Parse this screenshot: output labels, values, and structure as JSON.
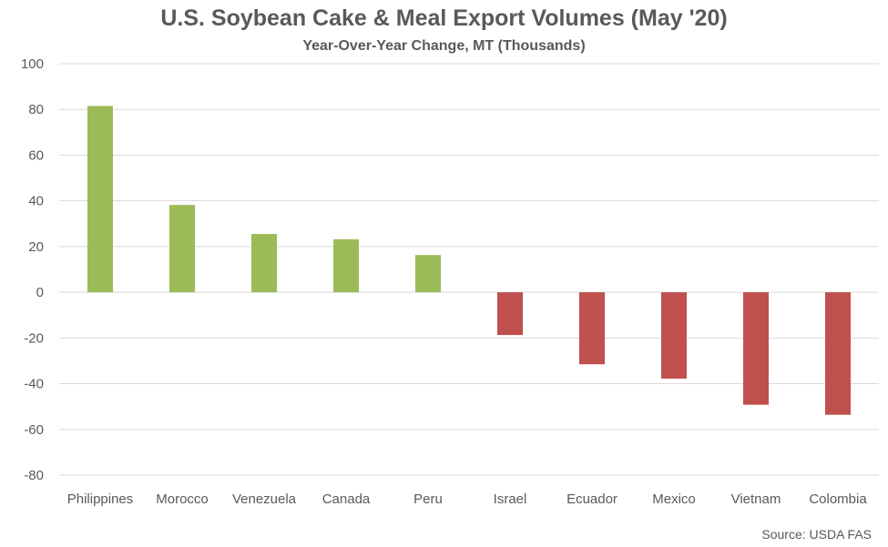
{
  "chart_data": {
    "type": "bar",
    "title": "U.S. Soybean Cake & Meal Export Volumes (May '20)",
    "subtitle": "Year-Over-Year Change, MT (Thousands)",
    "xlabel": "",
    "ylabel": "",
    "categories": [
      "Philippines",
      "Morocco",
      "Venezuela",
      "Canada",
      "Peru",
      "Israel",
      "Ecuador",
      "Mexico",
      "Vietnam",
      "Colombia"
    ],
    "values": [
      81.5,
      38.2,
      25.5,
      23.2,
      16.3,
      -18.7,
      -31.5,
      -37.8,
      -49.2,
      -53.6
    ],
    "ylim": [
      -80,
      100
    ],
    "yticks": [
      100,
      80,
      60,
      40,
      20,
      0,
      -20,
      -40,
      -60,
      -80
    ],
    "grid": true,
    "legend": "none",
    "colors": {
      "positive": "#9bbb59",
      "negative": "#c0504d",
      "grid": "#d9d9d9",
      "text": "#595959"
    }
  },
  "source": "Source: USDA FAS"
}
